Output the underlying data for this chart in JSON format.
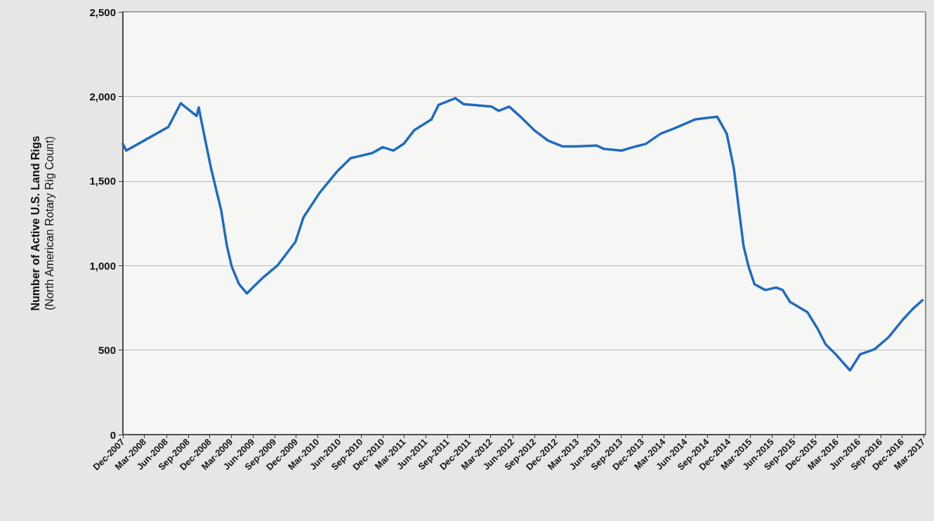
{
  "chart_data": {
    "type": "line",
    "ylabel": "Number of Active U.S. Land Rigs\n(North American Rotary Rig Count)",
    "x": [
      "2007-12-01",
      "2007-12-15",
      "2008-03-13",
      "2008-06-10",
      "2008-08-01",
      "2008-10-07",
      "2008-10-16",
      "2008-11-07",
      "2008-12-07",
      "2009-01-19",
      "2009-02-12",
      "2009-03-04",
      "2009-04-04",
      "2009-05-07",
      "2009-06-01",
      "2009-07-15",
      "2009-09-13",
      "2009-11-28",
      "2010-01-01",
      "2010-03-10",
      "2010-05-22",
      "2010-07-19",
      "2010-10-18",
      "2010-12-01",
      "2011-01-15",
      "2011-02-28",
      "2011-04-13",
      "2011-06-25",
      "2011-07-25",
      "2011-10-04",
      "2011-11-07",
      "2012-03-04",
      "2012-04-04",
      "2012-05-18",
      "2012-07-01",
      "2012-09-01",
      "2012-10-28",
      "2012-12-28",
      "2013-02-25",
      "2013-05-22",
      "2013-06-22",
      "2013-09-04",
      "2013-11-04",
      "2013-12-16",
      "2014-02-16",
      "2014-04-13",
      "2014-07-13",
      "2014-09-10",
      "2014-10-13",
      "2014-11-22",
      "2014-12-22",
      "2015-01-13",
      "2015-02-01",
      "2015-02-22",
      "2015-03-19",
      "2015-05-04",
      "2015-06-18",
      "2015-07-16",
      "2015-08-16",
      "2015-10-28",
      "2015-12-13",
      "2016-01-13",
      "2016-02-25",
      "2016-04-25",
      "2016-06-07",
      "2016-08-07",
      "2016-10-04",
      "2016-12-04",
      "2017-01-16",
      "2017-02-25"
    ],
    "series": [
      {
        "color": "#1f6bc0",
        "values": [
          1720,
          1680,
          1750,
          1820,
          1960,
          1885,
          1935,
          1780,
          1575,
          1325,
          1115,
          995,
          890,
          835,
          870,
          930,
          1000,
          1140,
          1285,
          1430,
          1555,
          1635,
          1665,
          1700,
          1680,
          1720,
          1800,
          1865,
          1950,
          1990,
          1955,
          1940,
          1915,
          1940,
          1885,
          1800,
          1740,
          1705,
          1705,
          1710,
          1690,
          1680,
          1705,
          1720,
          1780,
          1810,
          1865,
          1875,
          1880,
          1780,
          1575,
          1325,
          1115,
          995,
          890,
          855,
          870,
          855,
          785,
          725,
          620,
          535,
          475,
          380,
          475,
          505,
          575,
          680,
          745,
          795
        ]
      }
    ],
    "xlim": [
      "2007-12-01",
      "2017-03-10"
    ],
    "xticks": [
      {
        "value": "2007-12-01",
        "label": "Dec-2007"
      },
      {
        "value": "2008-03-01",
        "label": "Mar-2008"
      },
      {
        "value": "2008-06-01",
        "label": "Jun-2008"
      },
      {
        "value": "2008-09-01",
        "label": "Sep-2008"
      },
      {
        "value": "2008-12-01",
        "label": "Dec-2008"
      },
      {
        "value": "2009-03-01",
        "label": "Mar-2009"
      },
      {
        "value": "2009-06-01",
        "label": "Jun-2009"
      },
      {
        "value": "2009-09-01",
        "label": "Sep-2009"
      },
      {
        "value": "2009-12-01",
        "label": "Dec-2009"
      },
      {
        "value": "2010-03-01",
        "label": "Mar-2010"
      },
      {
        "value": "2010-06-01",
        "label": "Jun-2010"
      },
      {
        "value": "2010-09-01",
        "label": "Sep-2010"
      },
      {
        "value": "2010-12-01",
        "label": "Dec-2010"
      },
      {
        "value": "2011-03-01",
        "label": "Mar-2011"
      },
      {
        "value": "2011-06-01",
        "label": "Jun-2011"
      },
      {
        "value": "2011-09-01",
        "label": "Sep-2011"
      },
      {
        "value": "2011-12-01",
        "label": "Dec-2011"
      },
      {
        "value": "2012-03-01",
        "label": "Mar-2012"
      },
      {
        "value": "2012-06-01",
        "label": "Jun-2012"
      },
      {
        "value": "2012-09-01",
        "label": "Sep-2012"
      },
      {
        "value": "2012-12-01",
        "label": "Dec-2012"
      },
      {
        "value": "2013-03-01",
        "label": "Mar-2013"
      },
      {
        "value": "2013-06-01",
        "label": "Jun-2013"
      },
      {
        "value": "2013-09-01",
        "label": "Sep-2013"
      },
      {
        "value": "2013-12-01",
        "label": "Dec-2013"
      },
      {
        "value": "2014-03-01",
        "label": "Mar-2014"
      },
      {
        "value": "2014-06-01",
        "label": "Jun-2014"
      },
      {
        "value": "2014-09-01",
        "label": "Sep-2014"
      },
      {
        "value": "2014-12-01",
        "label": "Dec-2014"
      },
      {
        "value": "2015-03-01",
        "label": "Mar-2015"
      },
      {
        "value": "2015-06-01",
        "label": "Jun-2015"
      },
      {
        "value": "2015-09-01",
        "label": "Sep-2015"
      },
      {
        "value": "2015-12-01",
        "label": "Dec-2015"
      },
      {
        "value": "2016-03-01",
        "label": "Mar-2016"
      },
      {
        "value": "2016-06-01",
        "label": "Jun-2016"
      },
      {
        "value": "2016-09-01",
        "label": "Sep-2016"
      },
      {
        "value": "2016-12-01",
        "label": "Dec-2016"
      },
      {
        "value": "2017-03-01",
        "label": "Mar-2017"
      }
    ],
    "ylim": [
      0,
      2500
    ],
    "yticks": [
      {
        "value": 0,
        "label": "0"
      },
      {
        "value": 500,
        "label": "500"
      },
      {
        "value": 1000,
        "label": "1,000"
      },
      {
        "value": 1500,
        "label": "1,500"
      },
      {
        "value": 2000,
        "label": "2,000"
      },
      {
        "value": 2500,
        "label": "2,500"
      }
    ],
    "grid": "y",
    "marker": "none",
    "line_style": "solid"
  }
}
